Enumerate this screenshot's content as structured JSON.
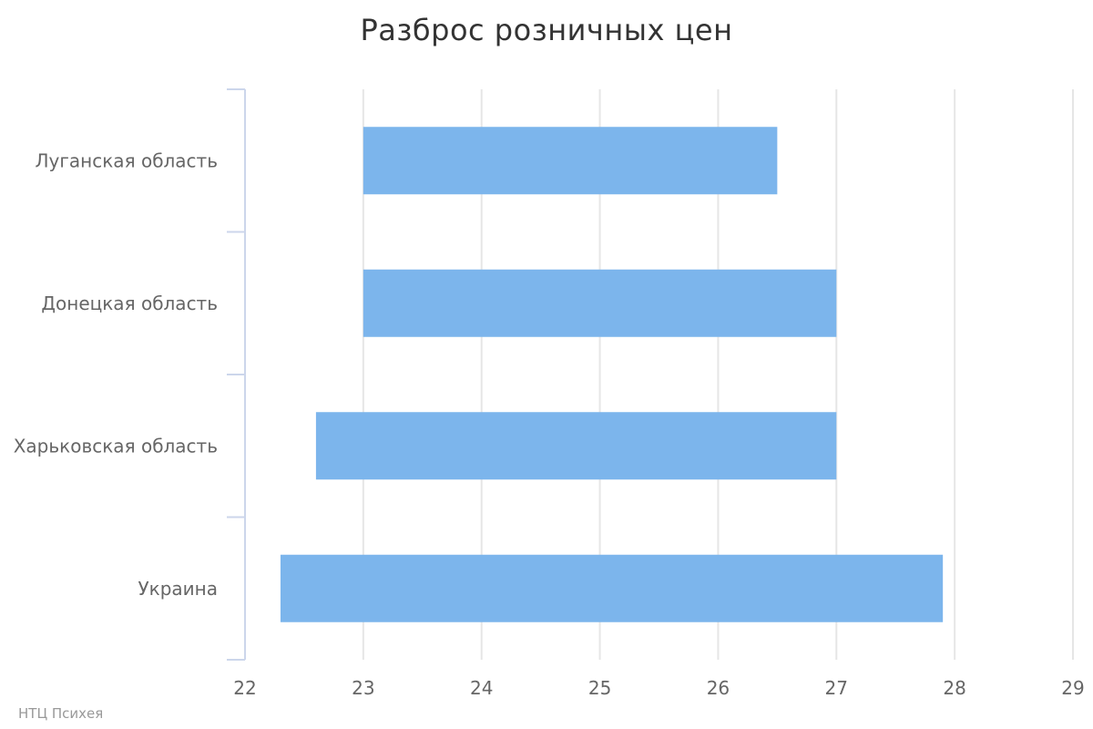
{
  "chart_data": {
    "type": "bar",
    "orientation": "horizontal",
    "subtype": "range",
    "title": "Разброс розничных цен",
    "xlabel": "",
    "ylabel": "",
    "categories": [
      "Луганская область",
      "Донецкая область",
      "Харьковская область",
      "Украина"
    ],
    "series": [
      {
        "low": [
          23.0,
          23.0,
          22.6,
          22.3
        ],
        "high": [
          26.5,
          27.0,
          27.0,
          27.9
        ],
        "color": "#7cb5ec"
      }
    ],
    "xlim": [
      22,
      29
    ],
    "ticks": [
      "22",
      "23",
      "24",
      "25",
      "26",
      "27",
      "28",
      "29"
    ],
    "grid": true,
    "legend": "none"
  },
  "credits": "НТЦ Психея"
}
